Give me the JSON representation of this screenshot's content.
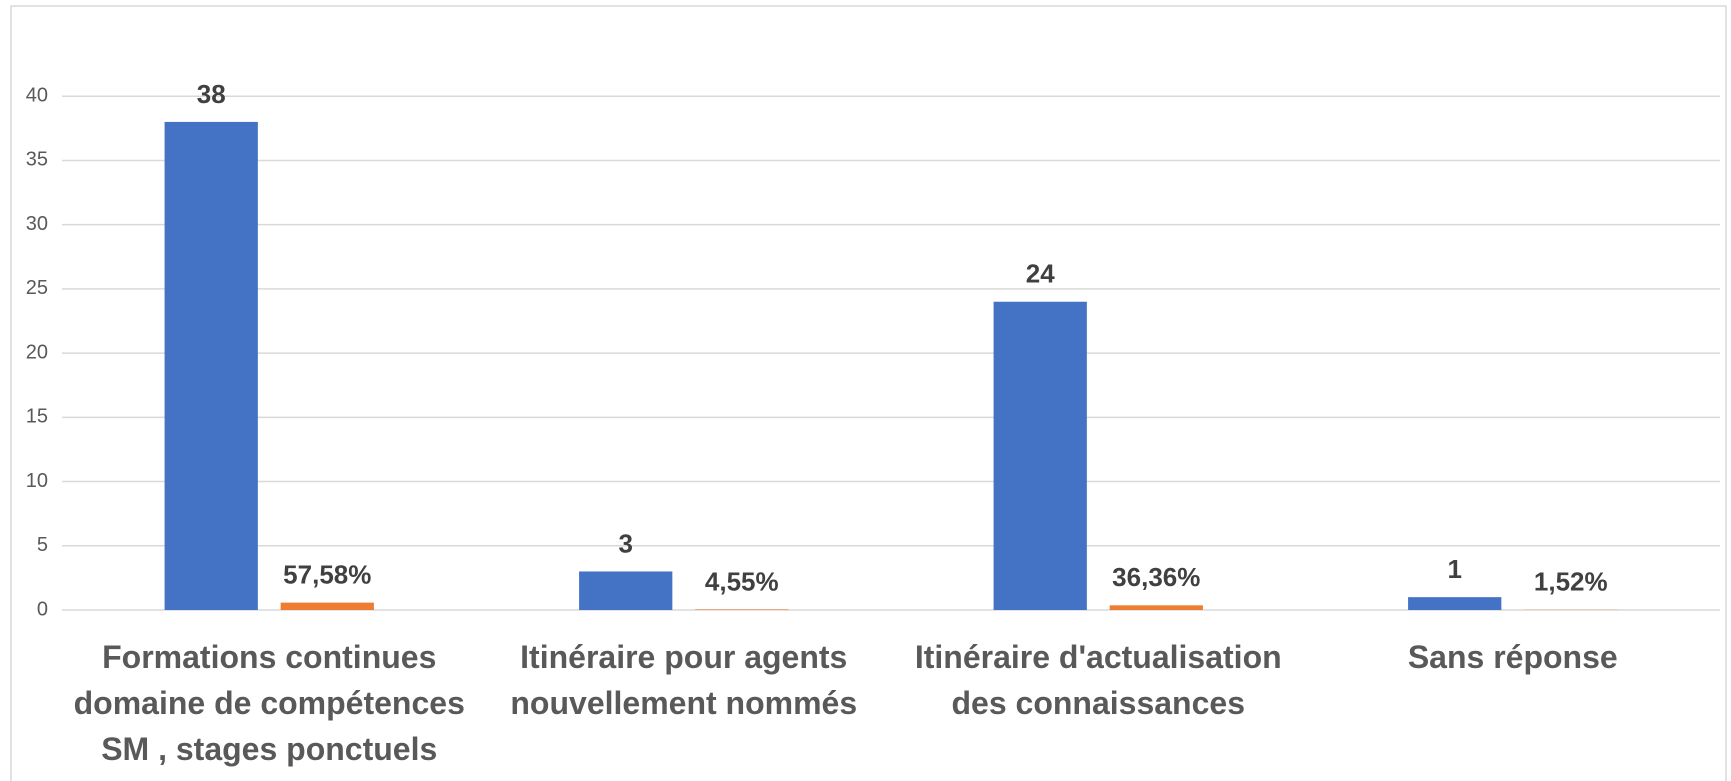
{
  "chart_data": {
    "type": "bar",
    "categories": [
      "Formations continues domaine de compétences SM , stages ponctuels",
      "Itinéraire  pour agents nouvellement nommés",
      "Itinéraire d'actualisation des connaissances",
      "Sans réponse"
    ],
    "series": [
      {
        "color": "#4472c4",
        "values": [
          38,
          3,
          24,
          1
        ]
      },
      {
        "color": "#ed7d31",
        "values": [
          0.5758,
          0.0455,
          0.3636,
          0.0152
        ],
        "value_labels": [
          "57,58%",
          "4,55%",
          "36,36%",
          "1,52%"
        ]
      }
    ],
    "ylim": [
      0,
      45
    ],
    "yticks": [
      0,
      5,
      10,
      15,
      20,
      25,
      30,
      35,
      40
    ],
    "grid": true
  }
}
